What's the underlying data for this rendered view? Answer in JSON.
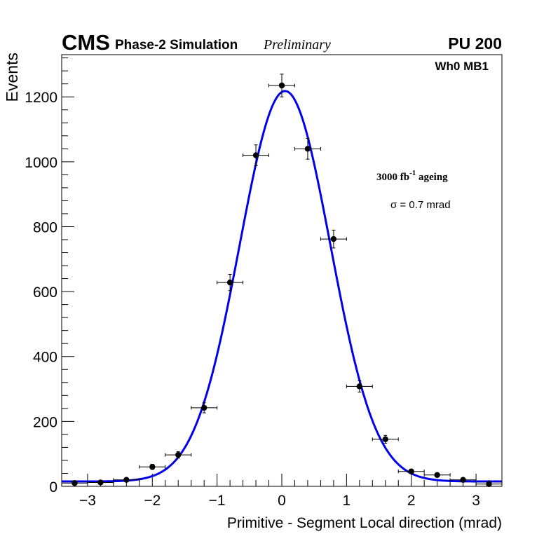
{
  "header": {
    "cms": "CMS",
    "subtitle": "Phase-2 Simulation",
    "preliminary": "Preliminary",
    "pileup": "PU 200"
  },
  "annotations": {
    "region": "Wh0 MB1",
    "ageing_pre": "3000 fb",
    "ageing_sup": "-1",
    "ageing_post": " ageing",
    "sigma": "σ = 0.7 mrad"
  },
  "colors": {
    "fit": "#0000ee",
    "points": "#000000",
    "frame": "#000000"
  },
  "chart_data": {
    "type": "scatter",
    "title": "",
    "xlabel": "Primitive - Segment Local direction (mrad)",
    "ylabel": "Events",
    "xlim": [
      -3.4,
      3.4
    ],
    "ylim": [
      0,
      1330
    ],
    "x_ticks": [
      -3,
      -2,
      -1,
      0,
      1,
      2,
      3
    ],
    "x_tick_labels": [
      "−3",
      "−2",
      "−1",
      "0",
      "1",
      "2",
      "3"
    ],
    "y_ticks": [
      0,
      200,
      400,
      600,
      800,
      1000,
      1200
    ],
    "y_tick_labels": [
      "0",
      "200",
      "400",
      "600",
      "800",
      "1000",
      "1200"
    ],
    "bin_half_width": 0.2,
    "series": [
      {
        "name": "Simulation",
        "style": "points-with-errors",
        "x": [
          -3.2,
          -2.8,
          -2.4,
          -2.0,
          -1.6,
          -1.2,
          -0.8,
          -0.4,
          0.0,
          0.4,
          0.8,
          1.2,
          1.6,
          2.0,
          2.4,
          2.8,
          3.2
        ],
        "y": [
          10,
          12,
          20,
          60,
          97,
          242,
          628,
          1020,
          1235,
          1040,
          762,
          308,
          145,
          46,
          35,
          20,
          7
        ],
        "yerr": [
          3,
          3.5,
          4.5,
          8,
          10,
          15.5,
          25,
          32,
          35,
          32,
          27.5,
          17.5,
          12,
          7,
          6,
          4.5,
          2.6
        ]
      },
      {
        "name": "Gaussian fit",
        "style": "line",
        "function": "gaussian+constant",
        "amplitude": 1203,
        "mean": 0.05,
        "sigma": 0.7,
        "constant": 15
      }
    ]
  }
}
